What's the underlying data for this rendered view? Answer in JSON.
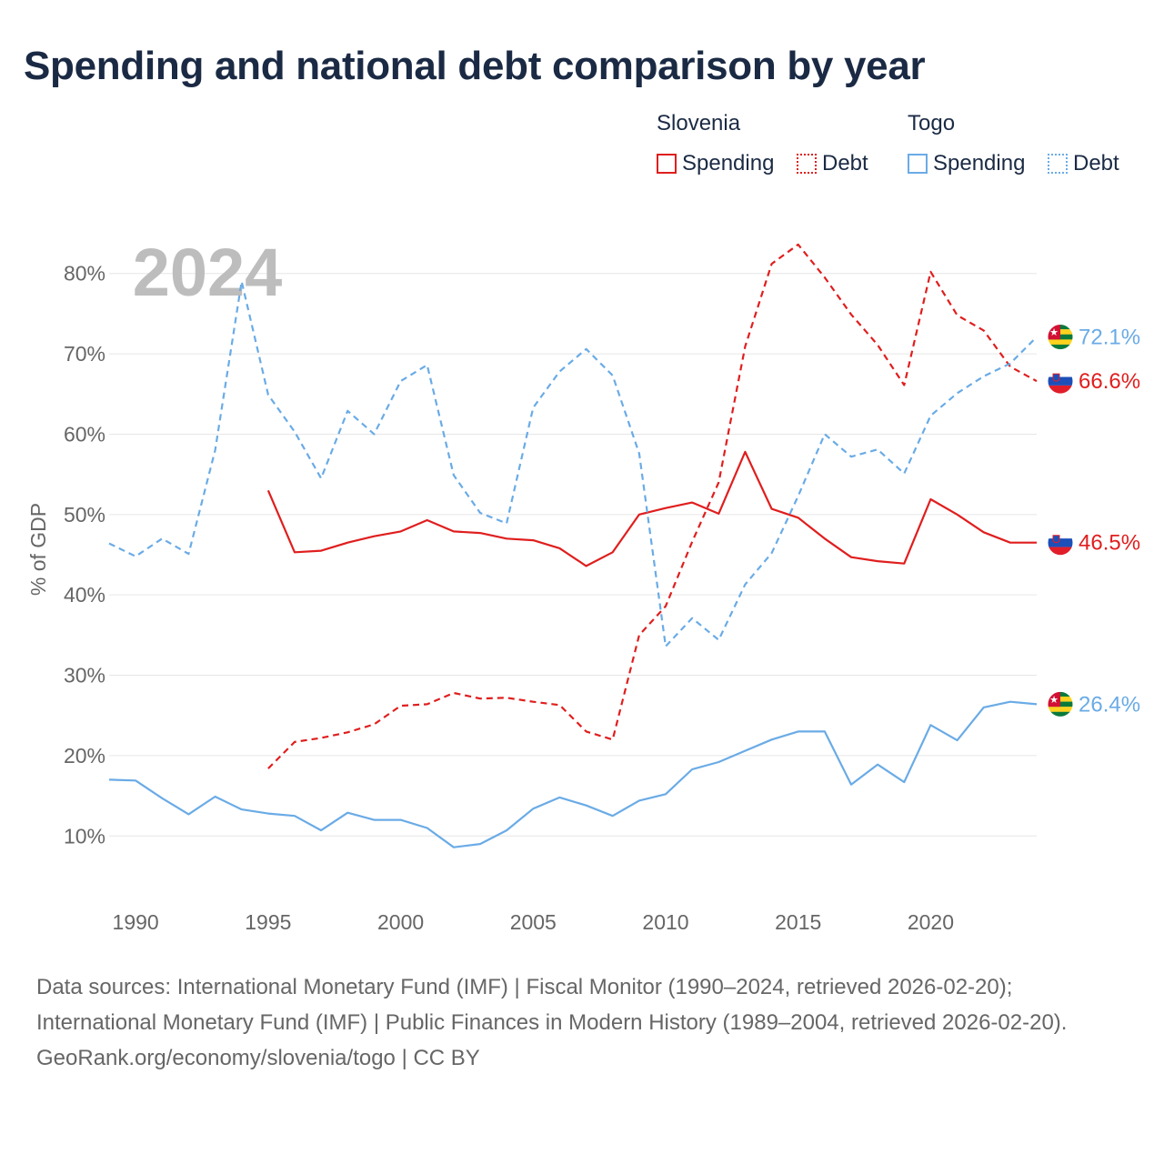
{
  "title": "Spending and national debt comparison by year",
  "legend": {
    "groups": [
      {
        "country": "Slovenia",
        "items": [
          "Spending",
          "Debt"
        ]
      },
      {
        "country": "Togo",
        "items": [
          "Spending",
          "Debt"
        ]
      }
    ]
  },
  "footer": {
    "sources": "Data sources: International Monetary Fund (IMF) | Fiscal Monitor (1990–2024, retrieved 2026-02-20); International Monetary Fund (IMF) | Public Finances in Modern History (1989–2004, retrieved 2026-02-20).",
    "credit": "GeoRank.org/economy/slovenia/togo | CC BY"
  },
  "colors": {
    "slovenia": "#e01e1e",
    "togo": "#6aabe6",
    "grid": "#e6e6e6",
    "axis_text": "#666666",
    "year_watermark": "#bdbdbd"
  },
  "chart_data": {
    "type": "line",
    "year_label": "2024",
    "ylabel": "% of GDP",
    "xlim": [
      1989,
      2024
    ],
    "ylim": [
      2,
      88
    ],
    "x_ticks": [
      1990,
      1995,
      2000,
      2005,
      2010,
      2015,
      2020
    ],
    "y_ticks": [
      10,
      20,
      30,
      40,
      50,
      60,
      70,
      80
    ],
    "y_tick_labels": [
      "10%",
      "20%",
      "30%",
      "40%",
      "50%",
      "60%",
      "70%",
      "80%"
    ],
    "series": [
      {
        "name": "Slovenia Spending",
        "country": "slovenia",
        "style": "solid",
        "x": [
          1995,
          1996,
          1997,
          1998,
          1999,
          2000,
          2001,
          2002,
          2003,
          2004,
          2005,
          2006,
          2007,
          2008,
          2009,
          2010,
          2011,
          2012,
          2013,
          2014,
          2015,
          2016,
          2017,
          2018,
          2019,
          2020,
          2021,
          2022,
          2023,
          2024
        ],
        "values": [
          53.0,
          45.3,
          45.5,
          46.5,
          47.3,
          47.9,
          49.3,
          47.9,
          47.7,
          47.0,
          46.8,
          45.8,
          43.6,
          45.3,
          50.0,
          50.8,
          51.5,
          50.1,
          57.8,
          50.7,
          49.6,
          47.0,
          44.7,
          44.2,
          43.9,
          51.9,
          50.0,
          47.8,
          46.5,
          46.5
        ],
        "end_label": "46.5%",
        "end_flag": "slovenia"
      },
      {
        "name": "Slovenia Debt",
        "country": "slovenia",
        "style": "dashed",
        "x": [
          1995,
          1996,
          1997,
          1998,
          1999,
          2000,
          2001,
          2002,
          2003,
          2004,
          2005,
          2006,
          2007,
          2008,
          2009,
          2010,
          2011,
          2012,
          2013,
          2014,
          2015,
          2016,
          2017,
          2018,
          2019,
          2020,
          2021,
          2022,
          2023,
          2024
        ],
        "values": [
          18.4,
          21.7,
          22.2,
          22.9,
          23.9,
          26.2,
          26.4,
          27.8,
          27.1,
          27.2,
          26.7,
          26.3,
          23.0,
          22.0,
          35.0,
          38.6,
          46.6,
          54.0,
          70.9,
          81.2,
          83.6,
          79.5,
          74.9,
          71.1,
          66.1,
          80.2,
          74.8,
          72.9,
          68.4,
          66.6
        ],
        "end_label": "66.6%",
        "end_flag": "slovenia"
      },
      {
        "name": "Togo Spending",
        "country": "togo",
        "style": "solid",
        "x": [
          1989,
          1990,
          1991,
          1992,
          1993,
          1994,
          1995,
          1996,
          1997,
          1998,
          1999,
          2000,
          2001,
          2002,
          2003,
          2004,
          2005,
          2006,
          2007,
          2008,
          2009,
          2010,
          2011,
          2012,
          2013,
          2014,
          2015,
          2016,
          2017,
          2018,
          2019,
          2020,
          2021,
          2022,
          2023,
          2024
        ],
        "values": [
          17.0,
          16.9,
          14.7,
          12.7,
          14.9,
          13.3,
          12.8,
          12.5,
          10.7,
          12.9,
          12.0,
          12.0,
          11.0,
          8.6,
          9.0,
          10.7,
          13.4,
          14.8,
          13.8,
          12.5,
          14.4,
          15.2,
          18.3,
          19.2,
          20.6,
          22.0,
          23.0,
          23.0,
          16.4,
          18.9,
          16.7,
          23.8,
          21.9,
          26.0,
          26.7,
          26.4
        ],
        "end_label": "26.4%",
        "end_flag": "togo"
      },
      {
        "name": "Togo Debt",
        "country": "togo",
        "style": "dashed",
        "x": [
          1989,
          1990,
          1991,
          1992,
          1993,
          1994,
          1995,
          1996,
          1997,
          1998,
          1999,
          2000,
          2001,
          2002,
          2003,
          2004,
          2005,
          2006,
          2007,
          2008,
          2009,
          2010,
          2011,
          2012,
          2013,
          2014,
          2015,
          2016,
          2017,
          2018,
          2019,
          2020,
          2021,
          2022,
          2023,
          2024
        ],
        "values": [
          46.4,
          44.8,
          47.0,
          45.1,
          58.0,
          79.0,
          64.9,
          60.3,
          54.5,
          62.9,
          60.0,
          66.6,
          68.6,
          54.9,
          50.2,
          48.9,
          63.3,
          67.8,
          70.6,
          67.3,
          57.6,
          33.6,
          37.1,
          34.4,
          41.3,
          45.2,
          52.3,
          60.0,
          57.2,
          58.1,
          55.1,
          62.3,
          65.1,
          67.2,
          68.8,
          72.1
        ],
        "end_label": "72.1%",
        "end_flag": "togo"
      }
    ]
  }
}
